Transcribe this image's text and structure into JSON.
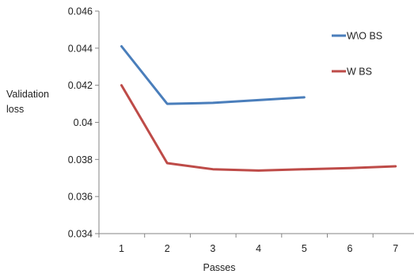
{
  "chart_data": {
    "type": "line",
    "x": [
      1,
      2,
      3,
      4,
      5,
      6,
      7
    ],
    "xlabel": "Passes",
    "ylabel": "Validation loss",
    "ylabel_lines": [
      "Validation",
      "loss"
    ],
    "ylim": [
      0.034,
      0.046
    ],
    "yticks": [
      0.034,
      0.036,
      0.038,
      0.04,
      0.042,
      0.044,
      0.046
    ],
    "ytick_labels": [
      "0.034",
      "0.036",
      "0.038",
      "0.04",
      "0.042",
      "0.044",
      "0.046"
    ],
    "xtick_labels": [
      "1",
      "2",
      "3",
      "4",
      "5",
      "6",
      "7"
    ],
    "grid": false,
    "legend": "right",
    "series": [
      {
        "name": "W\\O BS",
        "color": "#4a7ebb",
        "x": [
          1,
          2,
          3,
          4,
          5
        ],
        "values": [
          0.0441,
          0.041,
          0.04105,
          0.0412,
          0.04135
        ]
      },
      {
        "name": "W BS",
        "color": "#be4b48",
        "x": [
          1,
          2,
          3,
          4,
          5,
          6,
          7
        ],
        "values": [
          0.042,
          0.0378,
          0.03747,
          0.0374,
          0.03747,
          0.03753,
          0.03763
        ]
      }
    ]
  }
}
